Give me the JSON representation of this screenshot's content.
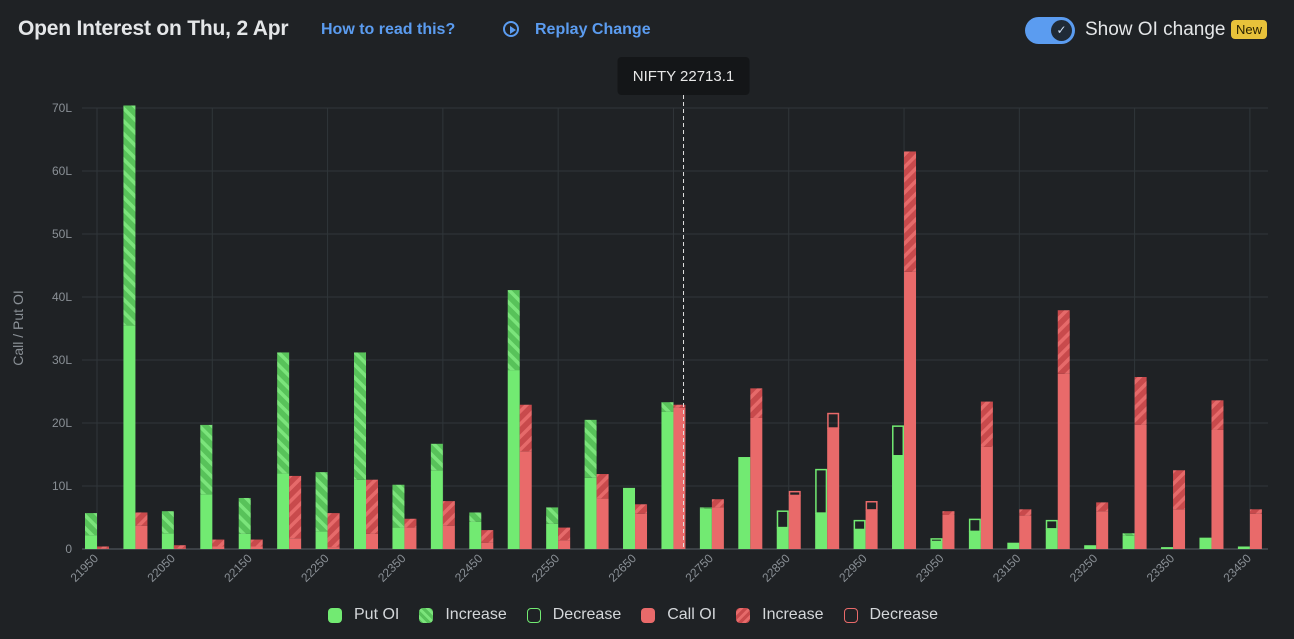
{
  "header": {
    "title": "Open Interest on Thu, 2 Apr",
    "how_to_read": "How to read this?",
    "replay": "Replay Change",
    "toggle_label": "Show OI change",
    "toggle_on": true,
    "new_badge": "New"
  },
  "colors": {
    "put": "#72ea72",
    "put_hatch": "#58c25a",
    "call": "#e96a6a",
    "call_hatch": "#c84a4c",
    "background": "#1f2225",
    "accent": "#5b9cf0"
  },
  "chart_data": {
    "type": "bar",
    "title": "",
    "ylabel": "Call / Put OI",
    "unit": "L",
    "ylim": [
      0,
      70
    ],
    "yticks": [
      "0",
      "10L",
      "20L",
      "30L",
      "40L",
      "50L",
      "60L",
      "70L"
    ],
    "xtick_labels": [
      "21950",
      "22050",
      "22150",
      "22250",
      "22350",
      "22450",
      "22550",
      "22650",
      "22750",
      "22850",
      "22950",
      "23050",
      "23150",
      "23250",
      "23350",
      "23450"
    ],
    "grid": true,
    "spot_label": "NIFTY 22713.1",
    "spot": 22713.1,
    "strikes": [
      21950,
      22000,
      22050,
      22100,
      22150,
      22200,
      22250,
      22300,
      22350,
      22400,
      22450,
      22500,
      22550,
      22600,
      22650,
      22700,
      22750,
      22800,
      22850,
      22900,
      22950,
      23000,
      23050,
      23100,
      23150,
      23200,
      23250,
      23300,
      23350,
      23400,
      23450
    ],
    "put_oi": [
      5.7,
      70.4,
      6.0,
      19.7,
      8.1,
      31.2,
      12.2,
      31.2,
      10.2,
      16.7,
      5.8,
      41.1,
      6.6,
      20.5,
      9.7,
      23.3,
      6.6,
      14.6,
      3.4,
      5.7,
      3.1,
      14.8,
      1.2,
      2.8,
      1.0,
      3.2,
      0.6,
      2.5,
      0.3,
      1.8,
      0.4
    ],
    "put_change": [
      3.5,
      34.9,
      3.5,
      11.0,
      5.7,
      19.2,
      9.4,
      20.2,
      6.8,
      4.2,
      1.5,
      12.7,
      2.6,
      9.2,
      0,
      1.5,
      0.2,
      0,
      -2.6,
      -6.9,
      -1.4,
      -4.7,
      -0.4,
      -1.9,
      0,
      -1.3,
      0,
      0.4,
      0,
      0,
      0
    ],
    "call_oi": [
      0.4,
      5.8,
      0.6,
      1.5,
      1.5,
      11.6,
      5.7,
      11.0,
      4.8,
      7.6,
      3.0,
      22.9,
      3.4,
      11.9,
      7.1,
      22.9,
      7.9,
      25.5,
      8.5,
      19.2,
      6.2,
      63.1,
      6.0,
      23.4,
      6.3,
      37.9,
      7.4,
      27.3,
      12.5,
      23.6,
      6.3
    ],
    "call_change": [
      0.3,
      2.1,
      0.5,
      1.1,
      1.1,
      9.9,
      5.4,
      8.6,
      1.4,
      3.9,
      2.0,
      7.4,
      2.0,
      3.9,
      1.5,
      0.5,
      1.3,
      4.7,
      -0.6,
      -2.3,
      -1.3,
      19.1,
      0.6,
      7.2,
      1.0,
      10.1,
      1.4,
      7.6,
      6.2,
      4.7,
      0.7
    ],
    "legend": [
      {
        "label": "Put OI",
        "kind": "put-solid"
      },
      {
        "label": "Increase",
        "kind": "put-increase"
      },
      {
        "label": "Decrease",
        "kind": "put-decrease"
      },
      {
        "label": "Call OI",
        "kind": "call-solid"
      },
      {
        "label": "Increase",
        "kind": "call-increase"
      },
      {
        "label": "Decrease",
        "kind": "call-decrease"
      }
    ],
    "legend_position": "bottom"
  }
}
